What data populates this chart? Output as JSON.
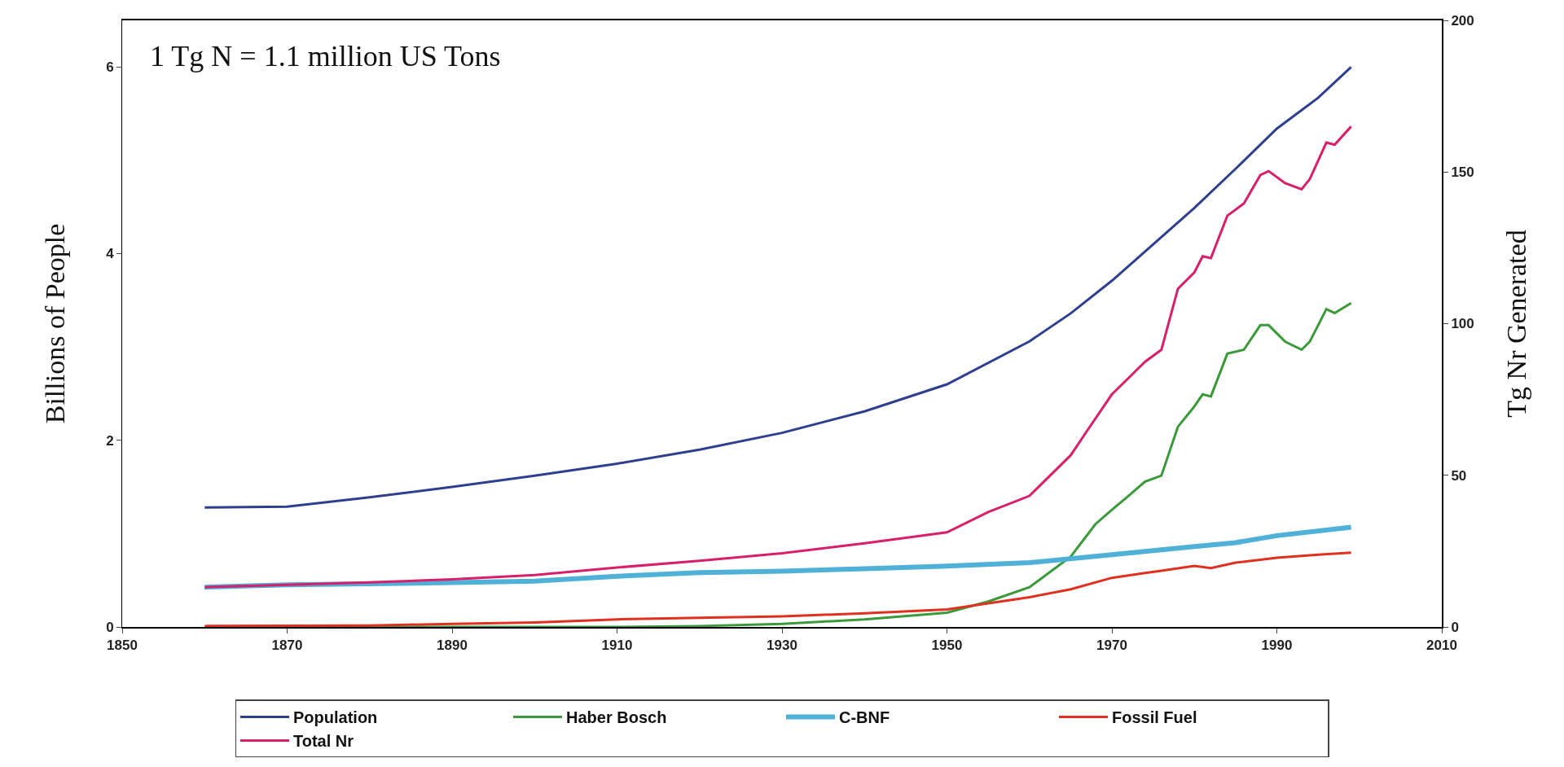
{
  "chart_data": {
    "type": "line",
    "ylabel": "Billions of People",
    "y2label": "Tg Nr Generated",
    "annotations": [
      "1 Tg N = 1.1 million US Tons"
    ],
    "xlim": [
      1850,
      2010
    ],
    "xticks": [
      1850,
      1870,
      1890,
      1910,
      1930,
      1950,
      1970,
      1990,
      2010
    ],
    "ylim": [
      0,
      6.5
    ],
    "yticks": [
      0,
      2,
      4,
      6
    ],
    "y2lim": [
      0,
      200
    ],
    "y2ticks": [
      0,
      50,
      100,
      150,
      200
    ],
    "grid": false,
    "legend": "bottom",
    "marker": "none",
    "line_style": "solid",
    "series": [
      {
        "name": "Population",
        "color": "#2e3f8f",
        "x": [
          1860,
          1870,
          1880,
          1890,
          1900,
          1910,
          1920,
          1930,
          1940,
          1950,
          1960,
          1965,
          1970,
          1975,
          1980,
          1985,
          1990,
          1995,
          1999
        ],
        "values": [
          1.28,
          1.29,
          1.39,
          1.5,
          1.62,
          1.75,
          1.9,
          2.08,
          2.31,
          2.6,
          3.06,
          3.36,
          3.71,
          4.1,
          4.49,
          4.91,
          5.34,
          5.67,
          6.0
        ]
      },
      {
        "name": "Haber Bosch",
        "color": "#3a9a3a",
        "axis": "y2",
        "x": [
          1860,
          1910,
          1920,
          1930,
          1940,
          1950,
          1955,
          1960,
          1965,
          1968,
          1970,
          1972,
          1974,
          1976,
          1978,
          1980,
          1981,
          1982,
          1984,
          1986,
          1988,
          1989,
          1991,
          1993,
          1994,
          1996,
          1997,
          1999
        ],
        "values": [
          0,
          0,
          0.3,
          1,
          2.5,
          4.7,
          8.4,
          13.1,
          23.2,
          33.9,
          38.6,
          43.2,
          47.9,
          49.9,
          66,
          72.7,
          76.7,
          76,
          90.1,
          91.4,
          99.5,
          99.5,
          94.1,
          91.4,
          94.1,
          104.8,
          103.5,
          106.8
        ]
      },
      {
        "name": "C-BNF",
        "color": "#4fb0d8",
        "axis": "y2",
        "x": [
          1860,
          1870,
          1890,
          1900,
          1910,
          1920,
          1930,
          1940,
          1950,
          1960,
          1970,
          1980,
          1985,
          1990,
          1999
        ],
        "values": [
          13.1,
          13.9,
          14.6,
          15.1,
          16.7,
          17.9,
          18.4,
          19.2,
          20.1,
          21.2,
          23.8,
          26.5,
          27.8,
          30.1,
          32.9
        ]
      },
      {
        "name": "Fossil Fuel",
        "color": "#e03020",
        "axis": "y2",
        "x": [
          1860,
          1880,
          1890,
          1900,
          1910,
          1920,
          1930,
          1940,
          1950,
          1960,
          1965,
          1970,
          1974,
          1976,
          1980,
          1982,
          1985,
          1990,
          1995,
          1999
        ],
        "values": [
          0.3,
          0.5,
          1,
          1.5,
          2.5,
          3,
          3.5,
          4.5,
          5.8,
          9.8,
          12.4,
          16.2,
          17.8,
          18.5,
          20.1,
          19.4,
          21.2,
          22.8,
          23.8,
          24.5
        ]
      },
      {
        "name": "Total Nr",
        "color": "#d81f6a",
        "axis": "y2",
        "x": [
          1860,
          1870,
          1880,
          1890,
          1900,
          1910,
          1920,
          1930,
          1940,
          1950,
          1955,
          1960,
          1965,
          1967,
          1970,
          1972,
          1974,
          1976,
          1978,
          1980,
          1981,
          1982,
          1984,
          1986,
          1988,
          1989,
          1991,
          1993,
          1994,
          1996,
          1997,
          1999
        ],
        "values": [
          13.1,
          13.9,
          14.7,
          15.7,
          17.1,
          19.6,
          21.8,
          24.3,
          27.6,
          31.2,
          37.9,
          43.2,
          56.6,
          64.7,
          76.7,
          82,
          87.4,
          91.4,
          111.5,
          116.9,
          122.2,
          121.6,
          135.6,
          139.6,
          149,
          150.3,
          146.3,
          144.3,
          147.7,
          159.7,
          159,
          165
        ]
      }
    ]
  }
}
